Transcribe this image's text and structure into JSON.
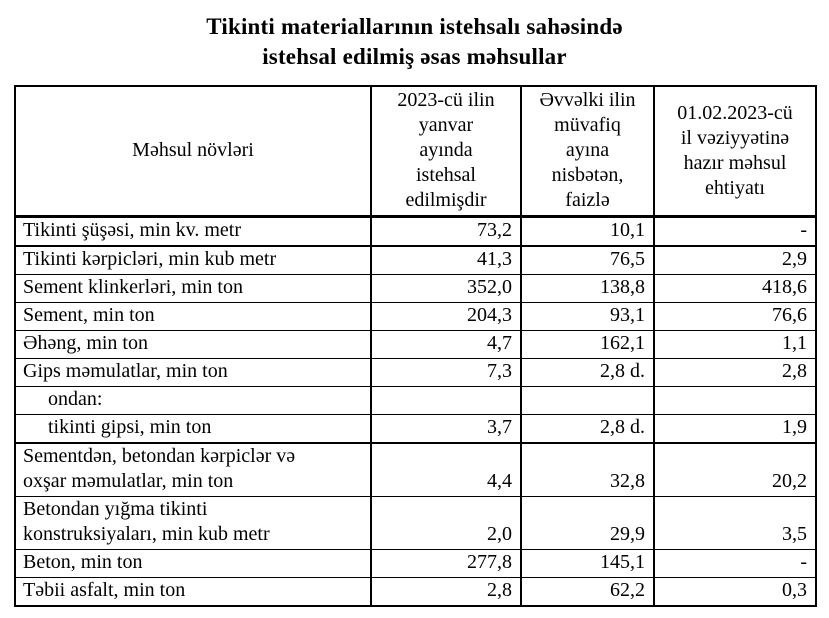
{
  "page": {
    "background_color": "#ffffff",
    "text_color": "#000000",
    "border_color": "#000000"
  },
  "title": {
    "text": "Tikinti materiallarının istehsalı sahəsində\nistehsal edilmiş əsas məhsullar"
  },
  "table": {
    "headers": [
      "Məhsul növləri",
      "2023-cü ilin\nyanvar\nayında\nistehsal\nedilmişdir",
      "Əvvəlki ilin\nmüvafiq\nayına\nnisbətən,\nfaizlə",
      "01.02.2023-cü\nil vəziyyətinə\nhazır məhsul\nehtiyatı"
    ],
    "rows": [
      {
        "label": "Tikinti şüşəsi, min kv. metr",
        "produced": "73,2",
        "vs_prev": "10,1",
        "stock": "-",
        "indent": false,
        "section_end": true
      },
      {
        "label": "Tikinti kərpicləri, min kub metr",
        "produced": "41,3",
        "vs_prev": "76,5",
        "stock": "2,9",
        "indent": false,
        "section_end": false
      },
      {
        "label": "Sement klinkerləri, min ton",
        "produced": "352,0",
        "vs_prev": "138,8",
        "stock": "418,6",
        "indent": false,
        "section_end": false
      },
      {
        "label": "Sement, min ton",
        "produced": "204,3",
        "vs_prev": "93,1",
        "stock": "76,6",
        "indent": false,
        "section_end": false
      },
      {
        "label": "Əhəng, min ton",
        "produced": "4,7",
        "vs_prev": "162,1",
        "stock": "1,1",
        "indent": false,
        "section_end": false
      },
      {
        "label": "Gips məmulatlar, min ton",
        "produced": "7,3",
        "vs_prev": "2,8 d.",
        "stock": "2,8",
        "indent": false,
        "section_end": false
      },
      {
        "label": "ondan:",
        "produced": "",
        "vs_prev": "",
        "stock": "",
        "indent": true,
        "section_end": false
      },
      {
        "label": "tikinti gipsi, min ton",
        "produced": "3,7",
        "vs_prev": "2,8 d.",
        "stock": "1,9",
        "indent": true,
        "section_end": true
      },
      {
        "label": "Sementdən, betondan kərpiclər və\noxşar məmulatlar, min ton",
        "produced": "4,4",
        "vs_prev": "32,8",
        "stock": "20,2",
        "indent": false,
        "section_end": false
      },
      {
        "label": "Betondan yığma tikinti\nkonstruksiyaları, min kub metr",
        "produced": "2,0",
        "vs_prev": "29,9",
        "stock": "3,5",
        "indent": false,
        "section_end": false
      },
      {
        "label": "Beton, min ton",
        "produced": "277,8",
        "vs_prev": "145,1",
        "stock": "-",
        "indent": false,
        "section_end": false
      },
      {
        "label": "Təbii asfalt, min ton",
        "produced": "2,8",
        "vs_prev": "62,2",
        "stock": "0,3",
        "indent": false,
        "section_end": false
      }
    ]
  }
}
